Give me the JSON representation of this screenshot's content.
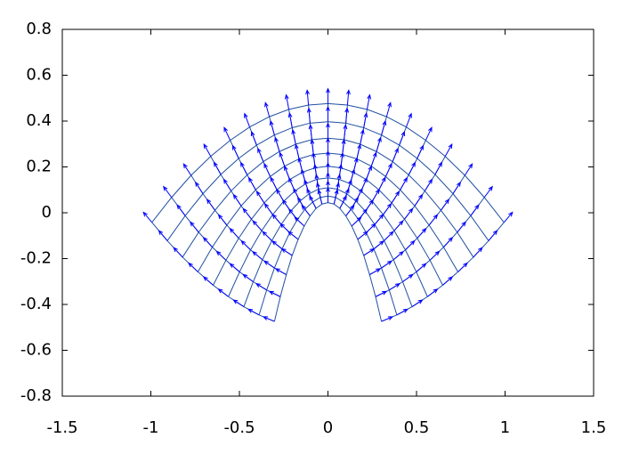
{
  "chart_data": {
    "type": "quiver",
    "xlim": [
      -1.5,
      1.5
    ],
    "ylim": [
      -0.8,
      0.8
    ],
    "xticks": [
      -1.5,
      -1,
      -0.5,
      0,
      0.5,
      1,
      1.5
    ],
    "yticks": [
      -0.8,
      -0.6,
      -0.4,
      -0.2,
      0,
      0.2,
      0.4,
      0.6,
      0.8
    ],
    "color": "#0000ff",
    "mesh_color": "#1f4fa0",
    "arrow_length": 0.065,
    "x": [
      [
        -0.302,
        -0.269,
        -0.235,
        -0.202,
        -0.168,
        -0.134,
        -0.101,
        -0.067,
        -0.034,
        0,
        0.034,
        0.067,
        0.101,
        0.134,
        0.168,
        0.202,
        0.235,
        0.269,
        0.302
      ],
      [
        -0.389,
        -0.346,
        -0.302,
        -0.259,
        -0.216,
        -0.173,
        -0.13,
        -0.086,
        -0.043,
        0,
        0.043,
        0.086,
        0.13,
        0.173,
        0.216,
        0.259,
        0.302,
        0.346,
        0.389
      ],
      [
        -0.475,
        -0.422,
        -0.37,
        -0.317,
        -0.264,
        -0.211,
        -0.158,
        -0.106,
        -0.053,
        0,
        0.053,
        0.106,
        0.158,
        0.211,
        0.264,
        0.317,
        0.37,
        0.422,
        0.475
      ],
      [
        -0.562,
        -0.499,
        -0.437,
        -0.374,
        -0.312,
        -0.25,
        -0.187,
        -0.125,
        -0.062,
        0,
        0.062,
        0.125,
        0.187,
        0.25,
        0.312,
        0.374,
        0.437,
        0.499,
        0.562
      ],
      [
        -0.648,
        -0.576,
        -0.504,
        -0.432,
        -0.36,
        -0.288,
        -0.216,
        -0.144,
        -0.072,
        0,
        0.072,
        0.144,
        0.216,
        0.288,
        0.36,
        0.432,
        0.504,
        0.576,
        0.648
      ],
      [
        -0.734,
        -0.653,
        -0.571,
        -0.49,
        -0.408,
        -0.326,
        -0.245,
        -0.163,
        -0.082,
        0,
        0.082,
        0.163,
        0.245,
        0.326,
        0.408,
        0.49,
        0.571,
        0.653,
        0.734
      ],
      [
        -0.821,
        -0.73,
        -0.638,
        -0.547,
        -0.456,
        -0.365,
        -0.274,
        -0.182,
        -0.091,
        0,
        0.091,
        0.182,
        0.274,
        0.365,
        0.456,
        0.547,
        0.638,
        0.73,
        0.821
      ],
      [
        -0.907,
        -0.806,
        -0.706,
        -0.605,
        -0.504,
        -0.403,
        -0.302,
        -0.202,
        -0.101,
        0,
        0.101,
        0.202,
        0.302,
        0.403,
        0.504,
        0.605,
        0.706,
        0.806,
        0.907
      ],
      [
        -0.994,
        -0.883,
        -0.773,
        -0.662,
        -0.552,
        -0.442,
        -0.331,
        -0.221,
        -0.11,
        0,
        0.11,
        0.221,
        0.331,
        0.442,
        0.552,
        0.662,
        0.773,
        0.883,
        0.994
      ]
    ],
    "y": [
      [
        -0.474,
        -0.366,
        -0.27,
        -0.186,
        -0.116,
        -0.058,
        -0.014,
        0.019,
        0.038,
        0.044,
        0.038,
        0.019,
        -0.014,
        -0.058,
        -0.116,
        -0.186,
        -0.27,
        -0.366,
        -0.474
      ],
      [
        -0.446,
        -0.337,
        -0.241,
        -0.158,
        -0.087,
        -0.03,
        0.015,
        0.047,
        0.067,
        0.073,
        0.067,
        0.047,
        0.015,
        -0.03,
        -0.087,
        -0.158,
        -0.241,
        -0.337,
        -0.446
      ],
      [
        -0.41,
        -0.301,
        -0.205,
        -0.122,
        -0.051,
        0.007,
        0.051,
        0.083,
        0.103,
        0.109,
        0.103,
        0.083,
        0.051,
        0.007,
        -0.051,
        -0.122,
        -0.205,
        -0.301,
        -0.41
      ],
      [
        -0.366,
        -0.258,
        -0.162,
        -0.078,
        -0.008,
        0.05,
        0.095,
        0.127,
        0.146,
        0.152,
        0.146,
        0.127,
        0.095,
        0.05,
        -0.008,
        -0.078,
        -0.162,
        -0.258,
        -0.366
      ],
      [
        -0.316,
        -0.207,
        -0.111,
        -0.028,
        0.043,
        0.1,
        0.145,
        0.177,
        0.196,
        0.203,
        0.196,
        0.177,
        0.145,
        0.1,
        0.043,
        -0.028,
        -0.111,
        -0.207,
        -0.316
      ],
      [
        -0.258,
        -0.15,
        -0.054,
        0.03,
        0.1,
        0.158,
        0.203,
        0.235,
        0.254,
        0.26,
        0.254,
        0.235,
        0.203,
        0.158,
        0.1,
        0.03,
        -0.054,
        -0.15,
        -0.258
      ],
      [
        -0.194,
        -0.085,
        0.011,
        0.095,
        0.165,
        0.223,
        0.267,
        0.299,
        0.319,
        0.325,
        0.319,
        0.299,
        0.267,
        0.223,
        0.165,
        0.095,
        0.011,
        -0.085,
        -0.194
      ],
      [
        -0.122,
        -0.013,
        0.083,
        0.167,
        0.237,
        0.295,
        0.339,
        0.371,
        0.391,
        0.397,
        0.391,
        0.371,
        0.339,
        0.295,
        0.237,
        0.167,
        0.083,
        -0.013,
        -0.122
      ],
      [
        -0.042,
        0.067,
        0.163,
        0.246,
        0.316,
        0.374,
        0.419,
        0.451,
        0.47,
        0.476,
        0.47,
        0.451,
        0.419,
        0.374,
        0.316,
        0.246,
        0.163,
        0.067,
        -0.042
      ]
    ]
  }
}
